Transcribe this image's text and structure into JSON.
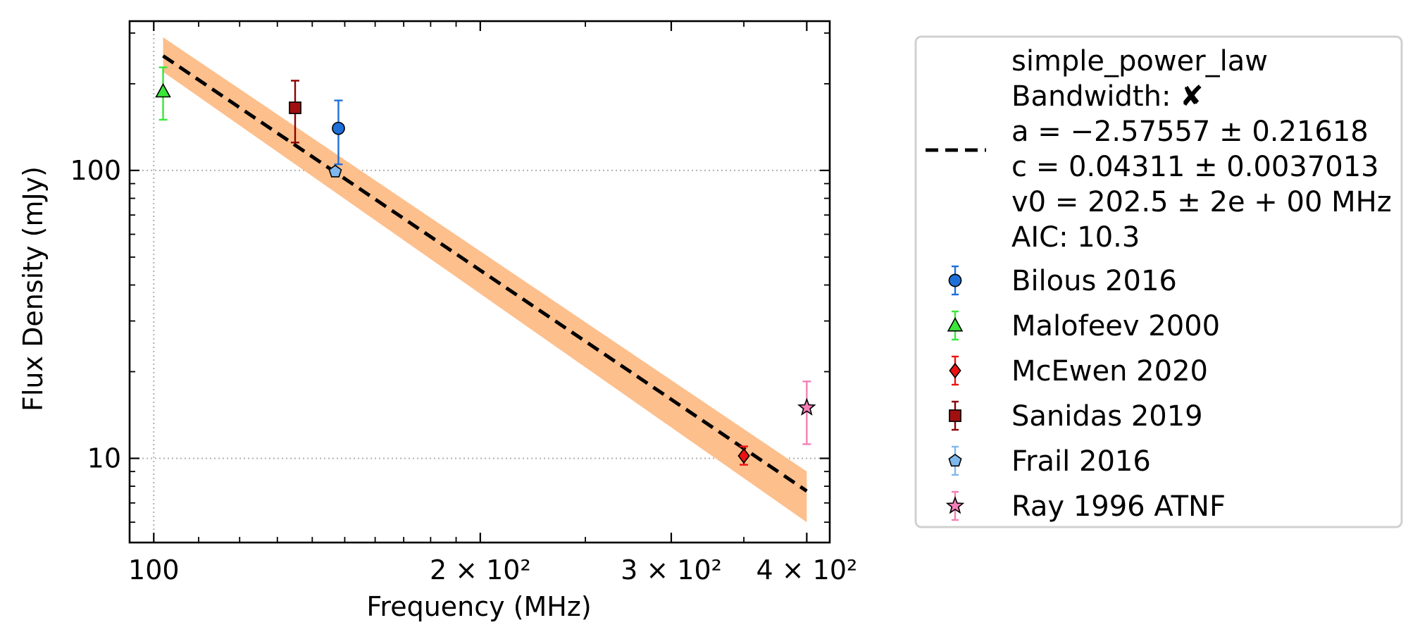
{
  "chart_data": {
    "type": "scatter",
    "xlabel": "Frequency (MHz)",
    "ylabel": "Flux Density (mJy)",
    "xscale": "log",
    "yscale": "log",
    "xlim": [
      95,
      420
    ],
    "ylim": [
      5.1,
      330
    ],
    "grid": "dotted, at major ticks",
    "legend_position": "outside right",
    "x_tick_labels": [
      {
        "value": 100,
        "label": "100"
      },
      {
        "value": 200,
        "label": "2 × 10²"
      },
      {
        "value": 300,
        "label": "3 × 10²"
      },
      {
        "value": 400,
        "label": "4 × 10²"
      }
    ],
    "y_tick_labels": [
      {
        "value": 10,
        "label": "10"
      },
      {
        "value": 100,
        "label": "100"
      }
    ],
    "fit": {
      "name": "simple_power_law",
      "legend_lines": [
        "simple_power_law",
        "Bandwidth: ✘",
        "a = −2.57557 ± 0.21618",
        "c = 0.04311 ± 0.0037013",
        "v0 = 202.5 ± 2e + 00 MHz",
        "AIC: 10.3"
      ],
      "line_color": "#000000",
      "band_color": "#fdbf8c",
      "x_range": [
        102,
        400
      ],
      "line_y": [
        250,
        7.7
      ],
      "band_upper_y": [
        290,
        9.0
      ],
      "band_lower_y": [
        220,
        6.0
      ]
    },
    "series": [
      {
        "name": "Bilous 2016",
        "marker": "circle",
        "color": "#1f6fd8",
        "errcolor": "#1f6fd8",
        "points": [
          {
            "x": 148,
            "y": 140,
            "ylo": 105,
            "yhi": 175
          }
        ]
      },
      {
        "name": "Malofeev 2000",
        "marker": "triangle",
        "color": "#39e639",
        "errcolor": "#39e639",
        "points": [
          {
            "x": 102,
            "y": 188,
            "ylo": 150,
            "yhi": 228
          }
        ]
      },
      {
        "name": "McEwen 2020",
        "marker": "diamond",
        "color": "#ee1111",
        "errcolor": "#ee1111",
        "points": [
          {
            "x": 350,
            "y": 10.2,
            "ylo": 9.5,
            "yhi": 11.0
          }
        ]
      },
      {
        "name": "Sanidas 2019",
        "marker": "square",
        "color": "#a01010",
        "errcolor": "#8b0000",
        "points": [
          {
            "x": 135,
            "y": 165,
            "ylo": 125,
            "yhi": 205
          }
        ]
      },
      {
        "name": "Frail 2016",
        "marker": "pentagon",
        "color": "#7fb8ec",
        "errcolor": "#7fb8ec",
        "points": [
          {
            "x": 147,
            "y": 99,
            "ylo": 97,
            "yhi": 101
          }
        ]
      },
      {
        "name": "Ray 1996 ATNF",
        "marker": "star",
        "color": "#f47fb6",
        "errcolor": "#f47fb6",
        "points": [
          {
            "x": 400,
            "y": 15,
            "ylo": 11.2,
            "yhi": 18.5
          }
        ]
      }
    ]
  }
}
